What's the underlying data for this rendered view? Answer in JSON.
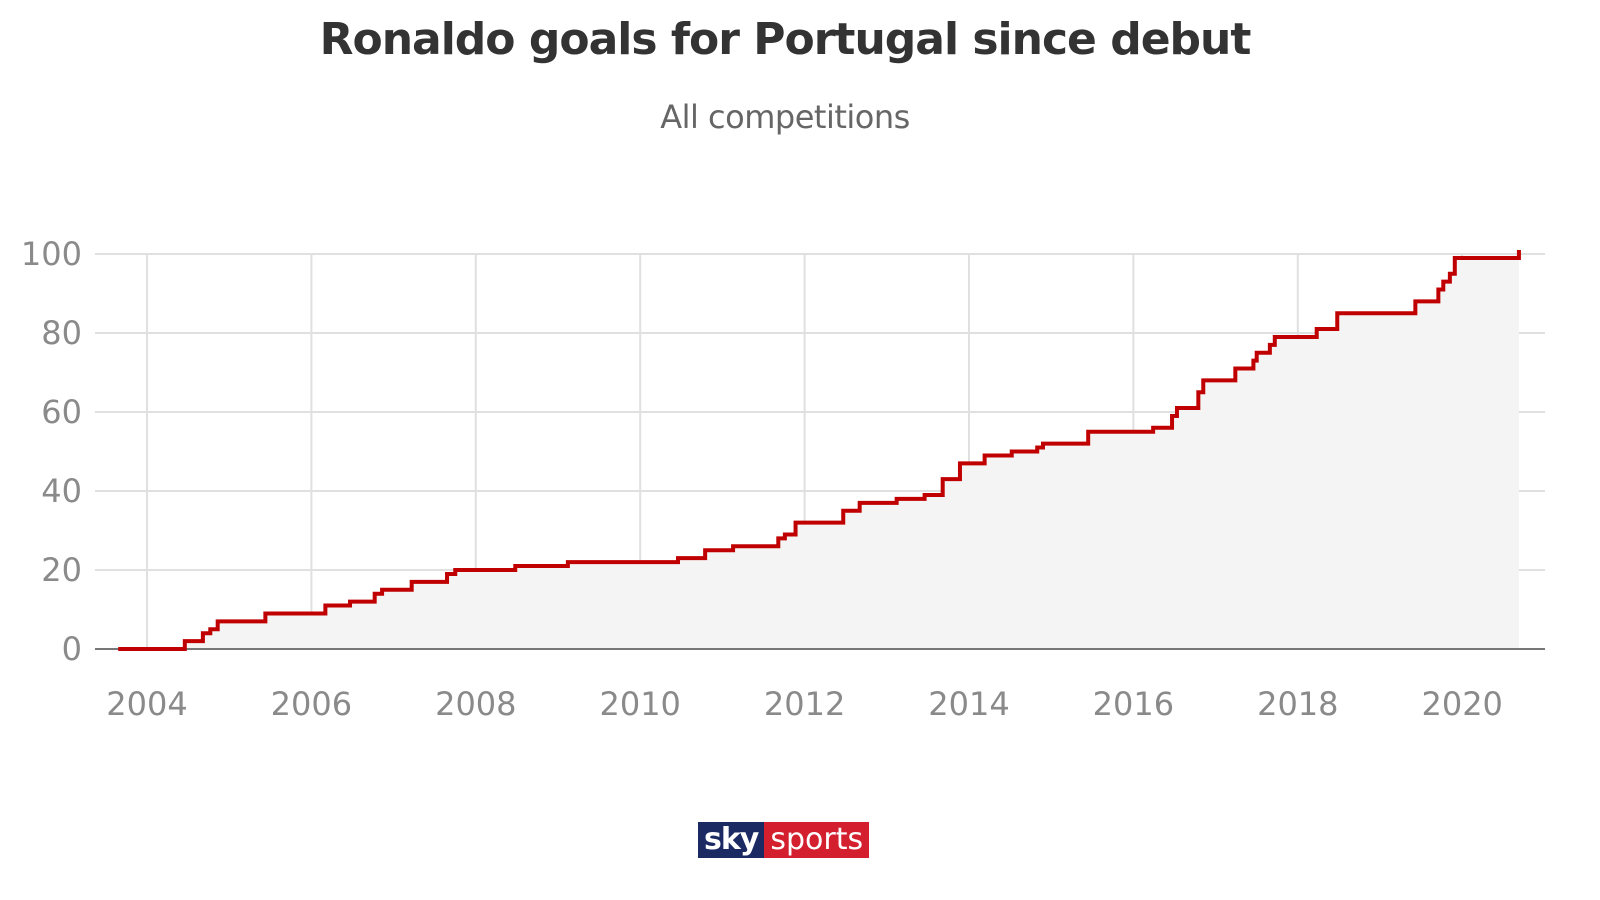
{
  "chart_data": {
    "type": "line",
    "step": true,
    "title": "Ronaldo goals for Portugal since debut",
    "subtitle": "All competitions",
    "xlabel": "",
    "ylabel": "",
    "xlim": [
      2003.3,
      2021.5
    ],
    "ylim": [
      0,
      100
    ],
    "xticks": [
      2004,
      2006,
      2008,
      2010,
      2012,
      2014,
      2016,
      2018,
      2020
    ],
    "yticks": [
      0,
      20,
      40,
      60,
      80,
      100
    ],
    "grid": true,
    "area_fill": true,
    "colors": {
      "line": "#c00000",
      "fill": "#f4f4f4",
      "grid": "#e0e0e0",
      "axis": "#777777"
    },
    "series": [
      {
        "x": [
          2003.65,
          2004.46,
          2004.68,
          2004.77,
          2004.86,
          2005.44,
          2006.17,
          2006.47,
          2006.77,
          2006.86,
          2007.22,
          2007.65,
          2007.75,
          2008.48,
          2009.12,
          2010.46,
          2010.79,
          2011.13,
          2011.68,
          2011.76,
          2011.89,
          2012.47,
          2012.67,
          2013.12,
          2013.46,
          2013.68,
          2013.89,
          2014.19,
          2014.52,
          2014.83,
          2014.9,
          2015.45,
          2016.24,
          2016.47,
          2016.53,
          2016.79,
          2016.85,
          2017.24,
          2017.46,
          2017.5,
          2017.66,
          2017.72,
          2018.23,
          2018.48,
          2019.43,
          2019.71,
          2019.77,
          2019.85,
          2019.91,
          2020.69
        ],
        "y": [
          0,
          2,
          4,
          5,
          7,
          9,
          11,
          12,
          14,
          15,
          17,
          19,
          20,
          21,
          22,
          23,
          25,
          26,
          28,
          29,
          32,
          35,
          37,
          38,
          39,
          43,
          47,
          49,
          50,
          51,
          52,
          55,
          56,
          59,
          61,
          65,
          68,
          71,
          73,
          75,
          77,
          79,
          81,
          85,
          88,
          91,
          93,
          95,
          99,
          101
        ],
        "end_x": 2020.69
      }
    ]
  },
  "logo": {
    "sky": "sky",
    "sports": "sports"
  }
}
